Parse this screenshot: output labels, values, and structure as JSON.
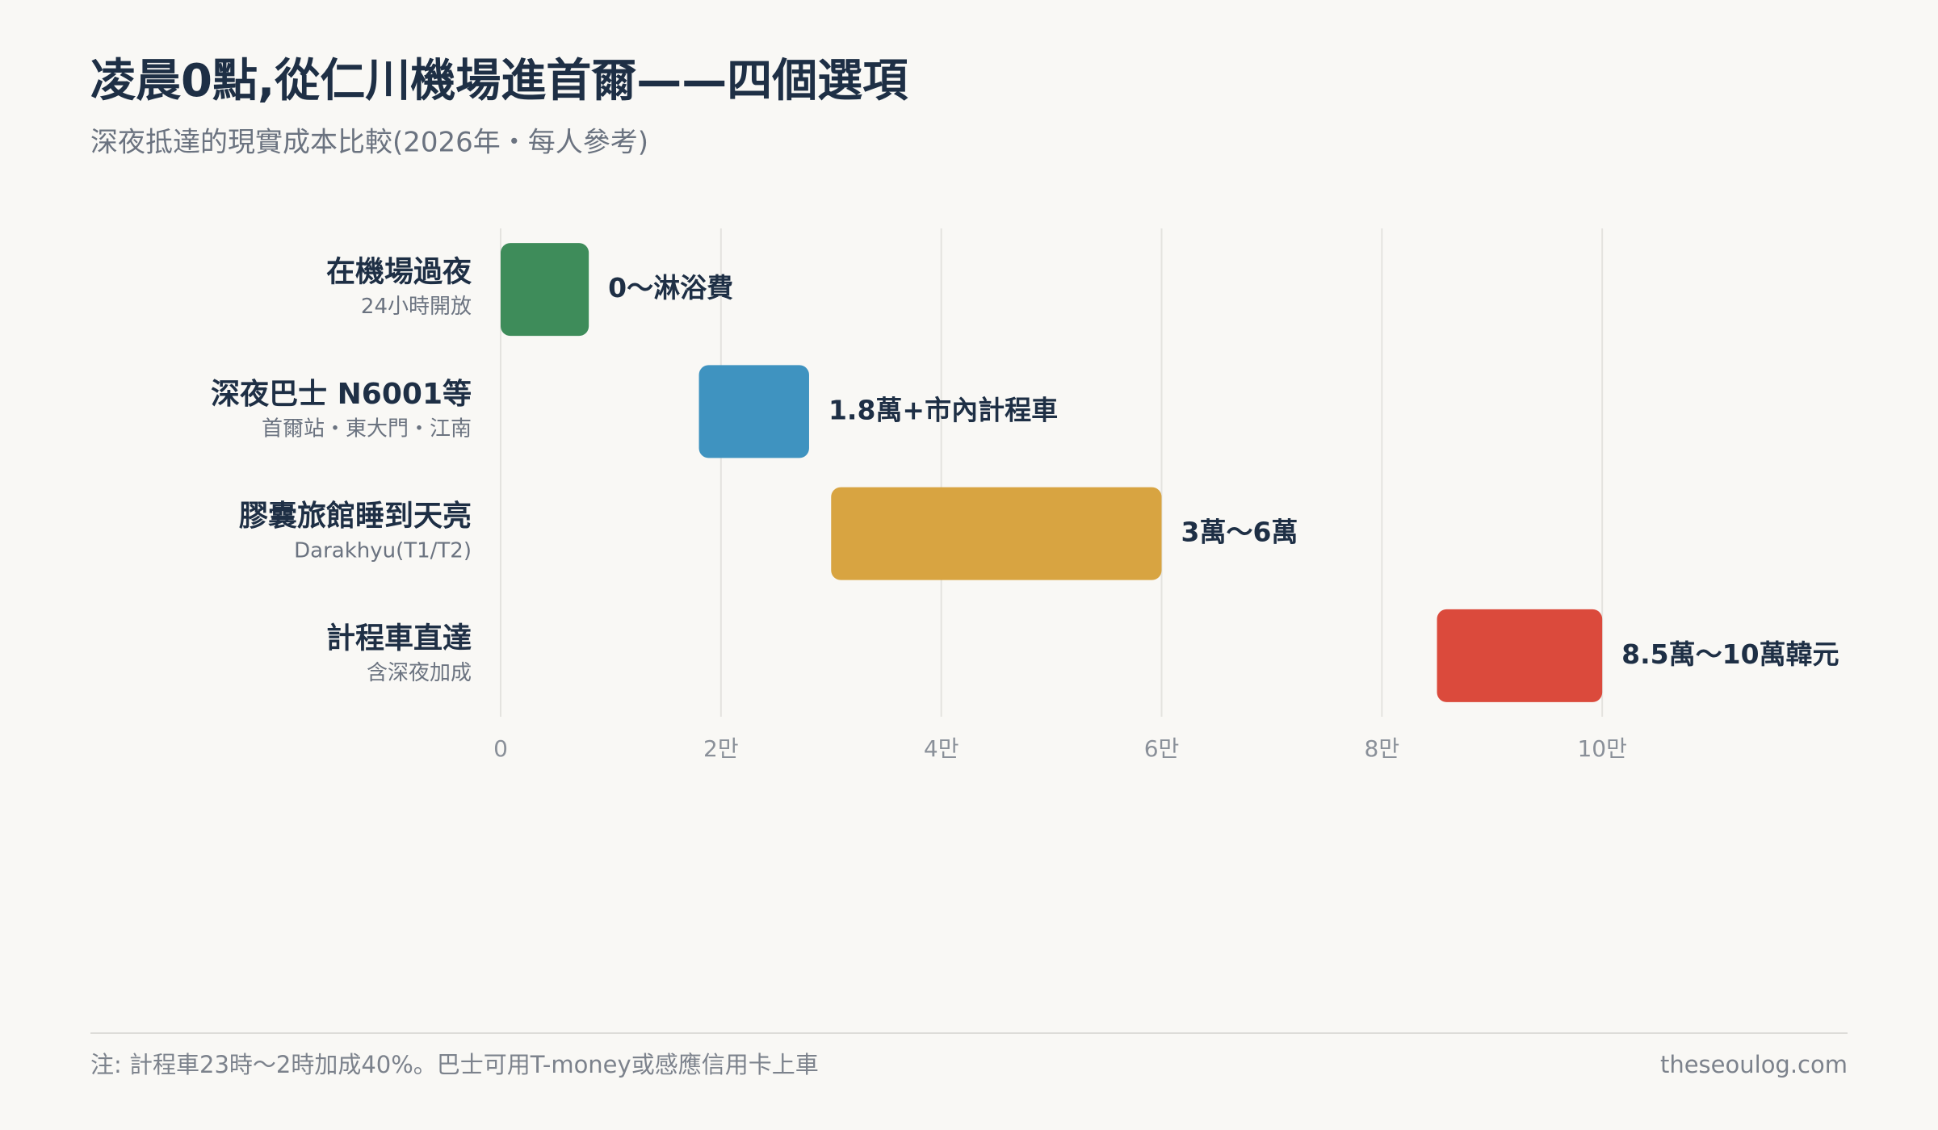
{
  "chart_data": {
    "type": "range-bar",
    "title": "凌晨0點,從仁川機場進首爾——四個選項",
    "subtitle": "深夜抵達的現實成本比較(2026年・每人參考)",
    "categories": [
      "在機場過夜",
      "深夜巴士 N6001等",
      "膠囊旅館睡到天亮",
      "計程車直達"
    ],
    "category_notes": [
      "24小時開放",
      "首爾站・東大門・江南",
      "Darakhyu(T1/T2)",
      "含深夜加成"
    ],
    "start": [
      0,
      1.8,
      3,
      8.5
    ],
    "end": [
      0.8,
      2.8,
      6,
      10
    ],
    "value_labels": [
      "0～淋浴費",
      "1.8萬+市內計程車",
      "3萬～6萬",
      "8.5萬～10萬韓元"
    ],
    "colors": [
      "#3e8c5a",
      "#3f93c0",
      "#d8a441",
      "#db4a3c"
    ],
    "xlim": [
      0,
      12
    ],
    "xticks": [
      0,
      {
        "value": 2,
        "label": "2만"
      },
      {
        "value": 4,
        "label": "4만"
      },
      {
        "value": 6,
        "label": "6만"
      },
      {
        "value": 8,
        "label": "8만"
      },
      {
        "value": 10,
        "label": "10만"
      }
    ],
    "grid": true,
    "footnote": "注: 計程車23時～2時加成40%。巴士可用T-money或感應信用卡上車",
    "source": "theseoulog.com"
  }
}
